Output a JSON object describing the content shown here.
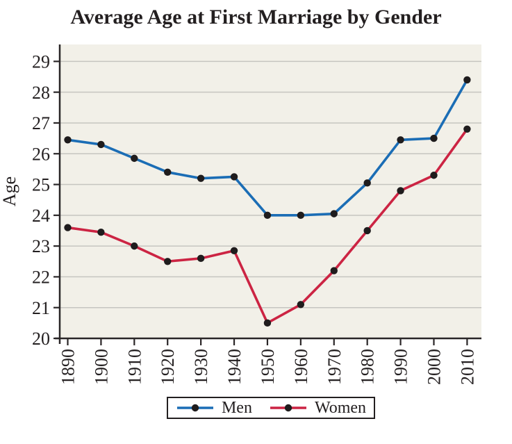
{
  "chart_data": {
    "type": "line",
    "title": "Average Age at First Marriage by Gender",
    "xlabel": "",
    "ylabel": "Age",
    "x": [
      1890,
      1900,
      1910,
      1920,
      1930,
      1940,
      1950,
      1960,
      1970,
      1980,
      1990,
      2000,
      2010
    ],
    "x_tick_labels": [
      "1890",
      "1900",
      "1910",
      "1920",
      "1930",
      "1940",
      "1950",
      "1960",
      "1970",
      "1980",
      "1990",
      "2000",
      "2010"
    ],
    "y_ticks": [
      20,
      21,
      22,
      23,
      24,
      25,
      26,
      27,
      28,
      29
    ],
    "xlim": [
      1887.6,
      2014.3
    ],
    "ylim": [
      20,
      29.55
    ],
    "grid": "horizontal",
    "legend_position": "bottom",
    "series": [
      {
        "name": "Men",
        "color": "#1b6db5",
        "values": [
          26.45,
          26.3,
          25.85,
          25.4,
          25.2,
          25.25,
          24.0,
          24.0,
          24.05,
          25.05,
          26.45,
          26.5,
          28.4
        ]
      },
      {
        "name": "Women",
        "color": "#cc2443",
        "values": [
          23.6,
          23.45,
          23.0,
          22.5,
          22.6,
          22.85,
          20.5,
          21.1,
          22.2,
          23.5,
          24.8,
          25.3,
          26.8
        ]
      }
    ],
    "marker_color": "#1f1c1d",
    "plot_bg": "#f2f0e8",
    "grid_color": "#c6c5c0",
    "axis_color": "#2a2627",
    "text_color": "#231f20"
  }
}
